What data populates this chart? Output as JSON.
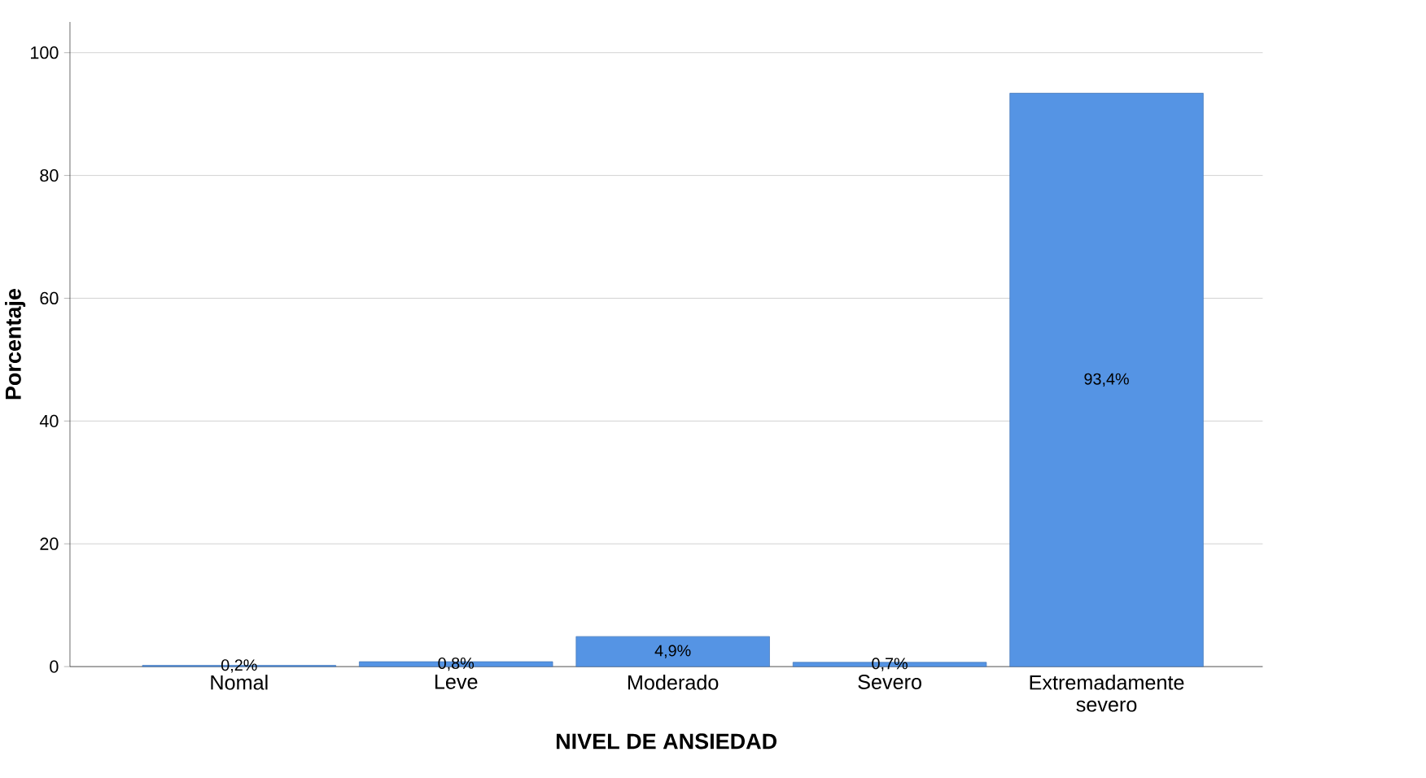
{
  "chart_data": {
    "type": "bar",
    "xlabel": "NIVEL DE ANSIEDAD",
    "ylabel": "Porcentaje",
    "categories": [
      "Nomal",
      "Leve",
      "Moderado",
      "Severo",
      "Extremadamente severo"
    ],
    "values": [
      0.2,
      0.8,
      4.9,
      0.7,
      93.4
    ],
    "value_labels": [
      "0,2%",
      "0,8%",
      "4,9%",
      "0,7%",
      "93,4%"
    ],
    "color": "#5594e4",
    "ylim": [
      0,
      105
    ],
    "yticks": [
      0,
      20,
      40,
      60,
      80,
      100
    ],
    "grid": "y"
  }
}
